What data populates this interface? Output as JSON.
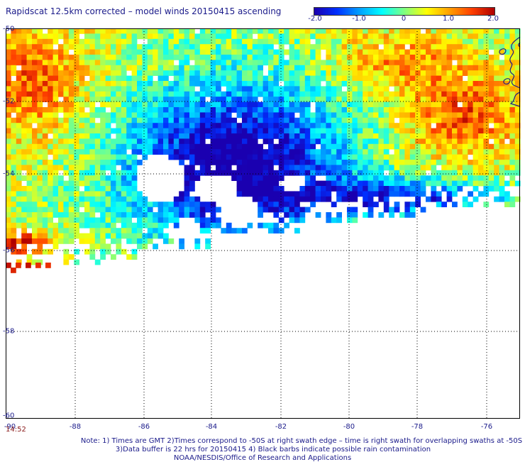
{
  "title": "Rapidscat 12.5km corrected – model winds 20150415 ascending",
  "colorbar": {
    "ticks": [
      "-2.0",
      "-1.0",
      "0",
      "1.0",
      "2.0"
    ],
    "min": -2.0,
    "max": 2.0,
    "colors": [
      "#1a00b0",
      "#0030ff",
      "#00a0ff",
      "#00ffff",
      "#80ff80",
      "#ffff00",
      "#ffa000",
      "#ff4000",
      "#b00000"
    ]
  },
  "axes": {
    "lat_labels": [
      "-50",
      "-52",
      "-54",
      "-56",
      "-58",
      "-60"
    ],
    "lon_labels": [
      "-88",
      "-86",
      "-84",
      "-82",
      "-80",
      "-78",
      "-76"
    ],
    "lat_range": [
      -60,
      -50
    ],
    "lon_range": [
      -90,
      -75.2
    ],
    "corner_lon_label": "-90"
  },
  "timestamp": "14:52",
  "notes": [
    "Note: 1) Times are GMT 2)Times correspond to -50S at right swath edge – time is right swath for overlapping swaths at -50S",
    "3)Data buffer is 22 hrs for 20150415 4) Black barbs indicate possible rain contamination",
    "NOAA/NESDIS/Office of Research and Applications"
  ]
}
